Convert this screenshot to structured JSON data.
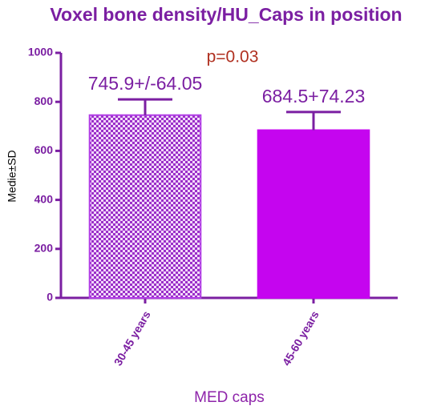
{
  "chart_data": {
    "type": "bar",
    "title": "Voxel bone density/HU_Caps in position",
    "xlabel": "MED caps",
    "ylabel": "Medie±SD",
    "annotation": "p=0.03",
    "categories": [
      "30-45 years",
      "45-60 years"
    ],
    "values": [
      745.9,
      684.5
    ],
    "errors": [
      64.05,
      74.23
    ],
    "value_labels": [
      "745.9+/-64.05",
      "684.5+74.23"
    ],
    "colors": [
      "#b23ee6",
      "#c505ef"
    ],
    "patterns": [
      "checker",
      "solid"
    ],
    "ylim": [
      0,
      1000
    ],
    "yticks": [
      0,
      200,
      400,
      600,
      800,
      1000
    ]
  }
}
